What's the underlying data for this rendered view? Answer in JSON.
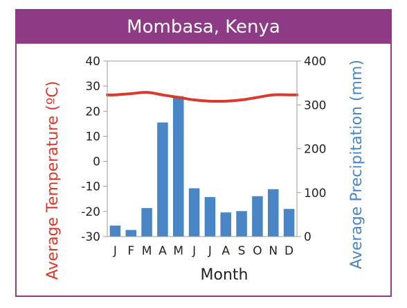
{
  "chart_data": {
    "type": "bar+line",
    "title": "Mombasa, Kenya",
    "xlabel": "Month",
    "categories": [
      "J",
      "F",
      "M",
      "A",
      "M",
      "J",
      "J",
      "A",
      "S",
      "O",
      "N",
      "D"
    ],
    "series": [
      {
        "kind": "line",
        "axis": "left",
        "values": [
          26.5,
          27,
          27.5,
          26.5,
          25.5,
          24.5,
          24,
          24,
          24.5,
          25.5,
          26.5,
          26.5
        ]
      },
      {
        "kind": "bar",
        "axis": "right",
        "values": [
          25,
          15,
          65,
          260,
          320,
          110,
          90,
          55,
          58,
          92,
          108,
          63
        ]
      }
    ],
    "y_left": {
      "label": "Average Temperature (ºC)",
      "min": -30,
      "max": 40,
      "ticks": [
        40,
        30,
        20,
        10,
        0,
        -10,
        -20,
        -30
      ],
      "tick_labels": [
        "40",
        "30",
        "20",
        "10",
        "0",
        "-10",
        "-20",
        "-30"
      ]
    },
    "y_right": {
      "label": "Average Precipitation (mm)",
      "min": 0,
      "max": 400,
      "ticks": [
        400,
        300,
        200,
        100,
        0
      ],
      "tick_labels": [
        "400",
        "300",
        "200",
        "100",
        "0"
      ]
    },
    "grid": false,
    "colors": {
      "title_bar": "#8e3a86",
      "temperature": "#d93a2b",
      "precipitation": "#4a86c5",
      "axis": "#9a9a9a"
    }
  }
}
